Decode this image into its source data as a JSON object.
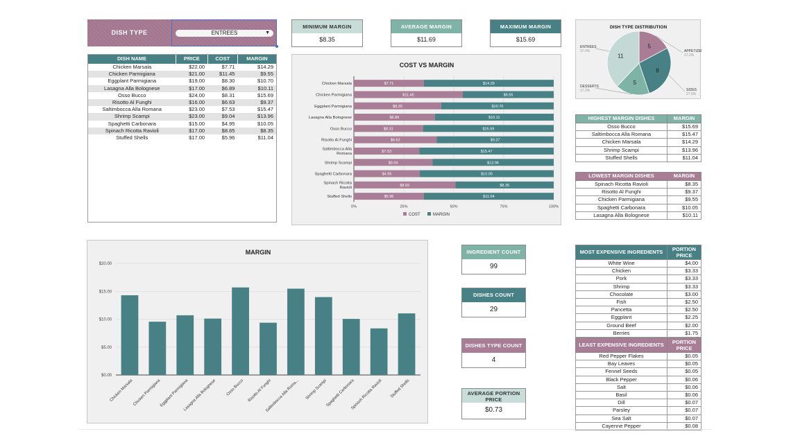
{
  "colors": {
    "rose": "#a87d95",
    "teal": "#478085",
    "mint": "#7fb3a6",
    "pale": "#c8ddd8",
    "pie_slice_light": "#c3d9d6"
  },
  "filter": {
    "label": "DISH TYPE",
    "value": "ENTREES"
  },
  "kpis": {
    "minimum_margin": {
      "label": "MINIMUM MARGIN",
      "value": "$8.35"
    },
    "average_margin": {
      "label": "AVERAGE MARGIN",
      "value": "$11.69"
    },
    "maximum_margin": {
      "label": "MAXIMUM MARGIN",
      "value": "$15.69"
    },
    "ingredient_count": {
      "label": "INGREDIENT COUNT",
      "value": "99"
    },
    "dishes_count": {
      "label": "DISHES COUNT",
      "value": "29"
    },
    "dishes_type_count": {
      "label": "DISHES TYPE COUNT",
      "value": "4"
    },
    "average_portion_price": {
      "label": "AVERAGE PORTION PRICE",
      "value": "$0.73"
    }
  },
  "dish_table": {
    "headers": [
      "DISH NAME",
      "PRICE",
      "COST",
      "MARGIN"
    ],
    "rows": [
      [
        "Chicken Marsala",
        "$22.00",
        "$7.71",
        "$14.29"
      ],
      [
        "Chicken Parmigiana",
        "$21.00",
        "$11.45",
        "$9.55"
      ],
      [
        "Eggplant Parmigiana",
        "$19.00",
        "$8.30",
        "$10.70"
      ],
      [
        "Lasagna Alla Bolognese",
        "$17.00",
        "$6.89",
        "$10.11"
      ],
      [
        "Osso Bucco",
        "$24.00",
        "$8.31",
        "$15.69"
      ],
      [
        "Risotto Al Funghi",
        "$16.00",
        "$6.63",
        "$9.37"
      ],
      [
        "Saltimbocca Alla Romana",
        "$23.00",
        "$7.53",
        "$15.47"
      ],
      [
        "Shrimp Scampi",
        "$23.00",
        "$9.04",
        "$13.96"
      ],
      [
        "Spaghetti Carbonara",
        "$15.00",
        "$4.95",
        "$10.05"
      ],
      [
        "Spinach Ricotta Ravioli",
        "$17.00",
        "$8.65",
        "$8.35"
      ],
      [
        "Stuffed Shells",
        "$17.00",
        "$5.96",
        "$11.04"
      ]
    ]
  },
  "highest_margin": {
    "headers": [
      "HIGHEST MARGIN DISHES",
      "MARGIN"
    ],
    "rows": [
      [
        "Osso Bucco",
        "$15.69"
      ],
      [
        "Saltimbocca Alla Romana",
        "$15.47"
      ],
      [
        "Chicken Marsala",
        "$14.29"
      ],
      [
        "Shrimp Scampi",
        "$13.96"
      ],
      [
        "Stuffed Shells",
        "$11.04"
      ]
    ]
  },
  "lowest_margin": {
    "headers": [
      "LOWEST MARGIN DISHES",
      "MARGIN"
    ],
    "rows": [
      [
        "Spinach Ricotta Ravioli",
        "$8.35"
      ],
      [
        "Risotto Al Funghi",
        "$9.37"
      ],
      [
        "Chicken Parmigiana",
        "$9.55"
      ],
      [
        "Spaghetti Carbonara",
        "$10.05"
      ],
      [
        "Lasagna Alla Bolognese",
        "$10.11"
      ]
    ]
  },
  "most_expensive": {
    "headers": [
      "MOST EXPENSIVE INGREDIENTS",
      "PORTION PRICE"
    ],
    "rows": [
      [
        "White Wine",
        "$4.00"
      ],
      [
        "Chicken",
        "$3.33"
      ],
      [
        "Pork",
        "$3.33"
      ],
      [
        "Shrimp",
        "$3.33"
      ],
      [
        "Chocolate",
        "$3.00"
      ],
      [
        "Fish",
        "$2.50"
      ],
      [
        "Pancetta",
        "$2.50"
      ],
      [
        "Eggplant",
        "$2.25"
      ],
      [
        "Ground Beef",
        "$2.00"
      ],
      [
        "Berries",
        "$1.75"
      ]
    ]
  },
  "least_expensive": {
    "headers": [
      "LEAST EXPENSIVE INGREDIENTS",
      "PORTION PRICE"
    ],
    "rows": [
      [
        "Red Pepper Flakes",
        "$0.05"
      ],
      [
        "Bay Leaves",
        "$0.05"
      ],
      [
        "Fennel Seeds",
        "$0.05"
      ],
      [
        "Black Pepper",
        "$0.06"
      ],
      [
        "Salt",
        "$0.06"
      ],
      [
        "Basil",
        "$0.06"
      ],
      [
        "Dill",
        "$0.07"
      ],
      [
        "Parsley",
        "$0.07"
      ],
      [
        "Sea Salt",
        "$0.07"
      ],
      [
        "Cayenne Pepper",
        "$0.08"
      ]
    ]
  },
  "chart_data": [
    {
      "id": "pie",
      "type": "pie",
      "title": "DISH TYPE DISTRIBUTION",
      "slices": [
        {
          "name": "APPETIZERS",
          "value": 5,
          "pct": "17.2%"
        },
        {
          "name": "SIDES",
          "value": 8,
          "pct": "27.6%"
        },
        {
          "name": "DESSERTS",
          "value": 5,
          "pct": "17.2%"
        },
        {
          "name": "ENTREES",
          "value": 11,
          "pct": "37.9%"
        }
      ]
    },
    {
      "id": "stacked",
      "type": "bar",
      "stacked_percent": true,
      "title": "COST VS MARGIN",
      "categories": [
        "Chicken Marsala",
        "Chicken Parmigiana",
        "Eggplant Parmigiana",
        "Lasagna Alla Bolognese",
        "Osso Bucco",
        "Risotto Al Funghi",
        "Saltimbocca Alla Romana",
        "Shrimp Scampi",
        "Spaghetti Carbonara",
        "Spinach Ricotta Ravioli",
        "Stuffed Shells"
      ],
      "series": [
        {
          "name": "COST",
          "values": [
            7.71,
            11.45,
            8.3,
            6.89,
            8.31,
            6.63,
            7.53,
            9.04,
            4.95,
            8.65,
            5.96
          ],
          "labels": [
            "$7.71",
            "$11.45",
            "$8.30",
            "$6.89",
            "$8.31",
            "$6.63",
            "$7.53",
            "$9.04",
            "$4.95",
            "$8.65",
            "$5.96"
          ]
        },
        {
          "name": "MARGIN",
          "values": [
            14.29,
            9.55,
            10.7,
            10.11,
            15.69,
            9.37,
            15.47,
            13.96,
            10.05,
            8.35,
            11.04
          ],
          "labels": [
            "$14.29",
            "$9.55",
            "$10.70",
            "$10.11",
            "$15.69",
            "$9.37",
            "$15.47",
            "$13.96",
            "$10.05",
            "$8.35",
            "$11.04"
          ]
        }
      ],
      "xticks": [
        "0%",
        "25%",
        "50%",
        "75%",
        "100%"
      ],
      "legend": [
        "COST",
        "MARGIN"
      ]
    },
    {
      "id": "margin",
      "type": "bar",
      "title": "MARGIN",
      "categories": [
        "Chicken Marsala",
        "Chicken Parmigiana",
        "Eggplant Parmigiana",
        "Lasagna Alla Bolognese",
        "Osso Bucco",
        "Risotto Al Funghi",
        "Saltimbocca Alla Roma...",
        "Shrimp Scampi",
        "Spaghetti Carbonara",
        "Spinach Ricotta Ravioli",
        "Stuffed Shells"
      ],
      "values": [
        14.29,
        9.55,
        10.7,
        10.11,
        15.69,
        9.37,
        15.47,
        13.96,
        10.05,
        8.35,
        11.04
      ],
      "ylim": [
        0,
        20
      ],
      "yticks": [
        "$0.00",
        "$5.00",
        "$10.00",
        "$15.00",
        "$20.00"
      ],
      "grid": true
    }
  ]
}
